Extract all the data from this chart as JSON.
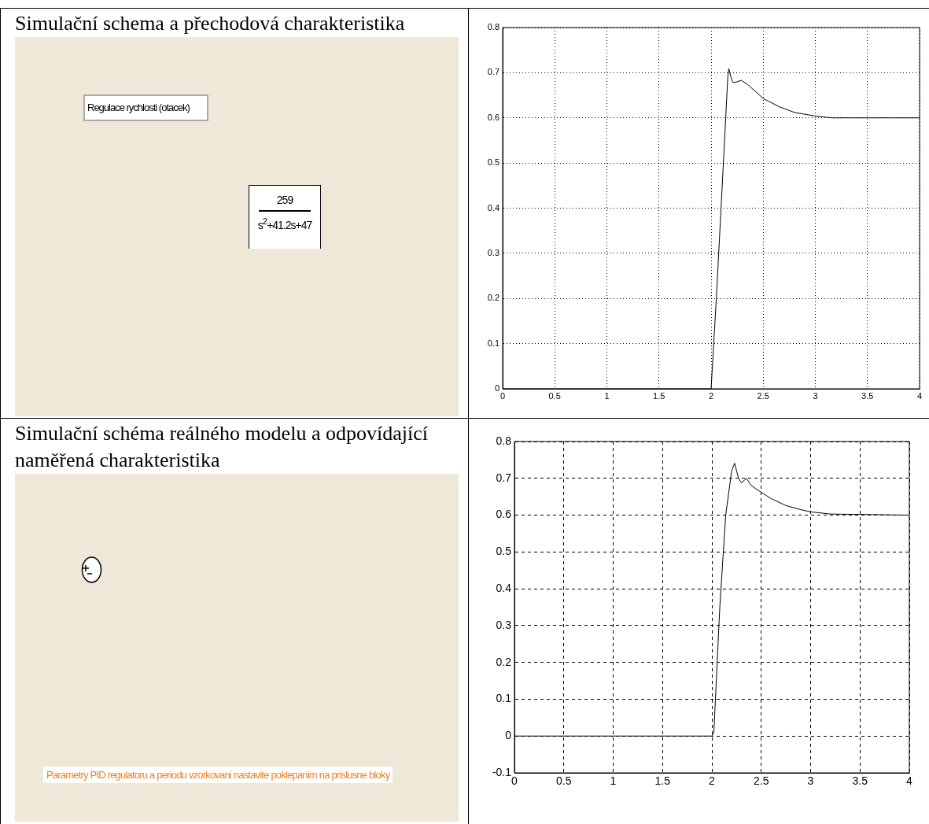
{
  "chart_data": [
    {
      "type": "line",
      "title": "Simulační schema a přechodová charakteristika",
      "annotations": [
        "Regulace rychlosti (otacek)",
        "259",
        "s$^{2}$+41.2s+47"
      ],
      "series": [
        {
          "color": "#000000",
          "x": [
            0,
            2,
            2.05,
            2.1,
            2.14,
            2.16,
            2.17,
            2.19,
            2.21,
            2.25,
            2.29,
            2.35,
            2.5,
            2.65,
            2.8,
            3.0,
            3.16,
            4
          ],
          "values": [
            0,
            0,
            0.2,
            0.42,
            0.6,
            0.69,
            0.709,
            0.69,
            0.678,
            0.68,
            0.683,
            0.674,
            0.643,
            0.625,
            0.612,
            0.604,
            0.6,
            0.6
          ]
        }
      ],
      "xlim": [
        0,
        4
      ],
      "xticks": [
        0,
        0.5,
        1,
        1.5,
        2,
        2.5,
        3,
        3.5,
        4
      ],
      "ylim": [
        0,
        0.8
      ],
      "yticks": [
        0,
        0.1,
        0.2,
        0.3,
        0.4,
        0.5,
        0.6,
        0.7,
        0.8
      ],
      "grid": true
    },
    {
      "type": "line",
      "title": "Simulační schéma reálného modelu a odpovídající naměřená charakteristika",
      "annotations": [
        "Parametry PID regulatoru a periodu vzorkovani nastavite poklepanim na prislusne bloky"
      ],
      "series": [
        {
          "color": "#000000",
          "x": [
            0,
            2,
            2.02,
            2.08,
            2.14,
            2.2,
            2.23,
            2.27,
            2.3,
            2.35,
            2.4,
            2.5,
            2.6,
            2.75,
            2.9,
            3.0,
            3.2,
            3.5,
            4
          ],
          "values": [
            0,
            0,
            0.01,
            0.35,
            0.6,
            0.72,
            0.741,
            0.7,
            0.688,
            0.7,
            0.68,
            0.662,
            0.645,
            0.626,
            0.615,
            0.609,
            0.603,
            0.602,
            0.6
          ]
        }
      ],
      "xlim": [
        0,
        4
      ],
      "xticks": [
        0,
        0.5,
        1,
        1.5,
        2,
        2.5,
        3,
        3.5,
        4
      ],
      "ylim": [
        -0.1,
        0.8
      ],
      "yticks": [
        -0.1,
        0,
        0.1,
        0.2,
        0.3,
        0.4,
        0.5,
        0.6,
        0.7,
        0.8
      ],
      "grid": true
    }
  ]
}
